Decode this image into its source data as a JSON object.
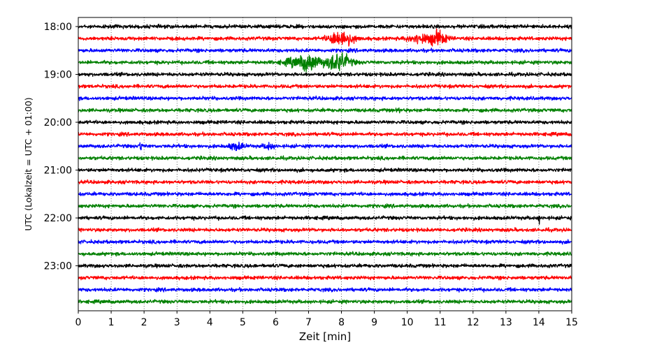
{
  "chart_data": {
    "type": "line",
    "title": "",
    "xlabel": "Zeit  [min]",
    "ylabel": "UTC (Lokalzeit = UTC + 01:00)",
    "xlim": [
      0,
      15
    ],
    "x_ticks": [
      "0",
      "1",
      "2",
      "3",
      "4",
      "5",
      "6",
      "7",
      "8",
      "9",
      "10",
      "11",
      "12",
      "13",
      "14",
      "15"
    ],
    "y_ticks": [
      "18:00",
      "19:00",
      "20:00",
      "21:00",
      "22:00",
      "23:00"
    ],
    "grid": "vertical dotted lines at each minute",
    "trace_interval_minutes": 15,
    "colors": [
      "#000000",
      "#ff0000",
      "#0000ff",
      "#008000"
    ],
    "series": [
      {
        "start": "18:00",
        "color": "#000000",
        "events": []
      },
      {
        "start": "18:15",
        "color": "#ff0000",
        "events": [
          {
            "minute": 8.0,
            "amplitude": 2.6,
            "duration": 0.5
          },
          {
            "minute": 10.4,
            "amplitude": 1.6,
            "duration": 0.5
          },
          {
            "minute": 10.9,
            "amplitude": 2.2,
            "duration": 0.4
          }
        ]
      },
      {
        "start": "18:30",
        "color": "#0000ff",
        "events": []
      },
      {
        "start": "18:45",
        "color": "#008000",
        "events": [
          {
            "minute": 6.6,
            "amplitude": 1.4,
            "duration": 0.5
          },
          {
            "minute": 7.0,
            "amplitude": 2.6,
            "duration": 0.5
          },
          {
            "minute": 7.5,
            "amplitude": 1.4,
            "duration": 0.4
          },
          {
            "minute": 7.9,
            "amplitude": 2.8,
            "duration": 0.5
          }
        ]
      },
      {
        "start": "19:00",
        "color": "#000000",
        "events": []
      },
      {
        "start": "19:15",
        "color": "#ff0000",
        "events": []
      },
      {
        "start": "19:30",
        "color": "#0000ff",
        "events": []
      },
      {
        "start": "19:45",
        "color": "#008000",
        "events": [
          {
            "minute": 9.75,
            "amplitude": 2.2,
            "duration": 0.03
          }
        ]
      },
      {
        "start": "20:00",
        "color": "#000000",
        "events": []
      },
      {
        "start": "20:15",
        "color": "#ff0000",
        "events": []
      },
      {
        "start": "20:30",
        "color": "#0000ff",
        "events": [
          {
            "minute": 1.9,
            "amplitude": 2.4,
            "duration": 0.04
          },
          {
            "minute": 4.8,
            "amplitude": 1.3,
            "duration": 0.3
          },
          {
            "minute": 5.8,
            "amplitude": 1.2,
            "duration": 0.2
          }
        ]
      },
      {
        "start": "20:45",
        "color": "#008000",
        "events": []
      },
      {
        "start": "21:00",
        "color": "#000000",
        "events": []
      },
      {
        "start": "21:15",
        "color": "#ff0000",
        "events": []
      },
      {
        "start": "21:30",
        "color": "#0000ff",
        "events": []
      },
      {
        "start": "21:45",
        "color": "#008000",
        "events": []
      },
      {
        "start": "22:00",
        "color": "#000000",
        "events": [
          {
            "minute": 14.0,
            "amplitude": 2.2,
            "duration": 0.03
          }
        ]
      },
      {
        "start": "22:15",
        "color": "#ff0000",
        "events": []
      },
      {
        "start": "22:30",
        "color": "#0000ff",
        "events": []
      },
      {
        "start": "22:45",
        "color": "#008000",
        "events": []
      },
      {
        "start": "23:00",
        "color": "#000000",
        "events": []
      },
      {
        "start": "23:15",
        "color": "#ff0000",
        "events": []
      },
      {
        "start": "23:30",
        "color": "#0000ff",
        "events": []
      },
      {
        "start": "23:45",
        "color": "#008000",
        "events": []
      }
    ]
  }
}
